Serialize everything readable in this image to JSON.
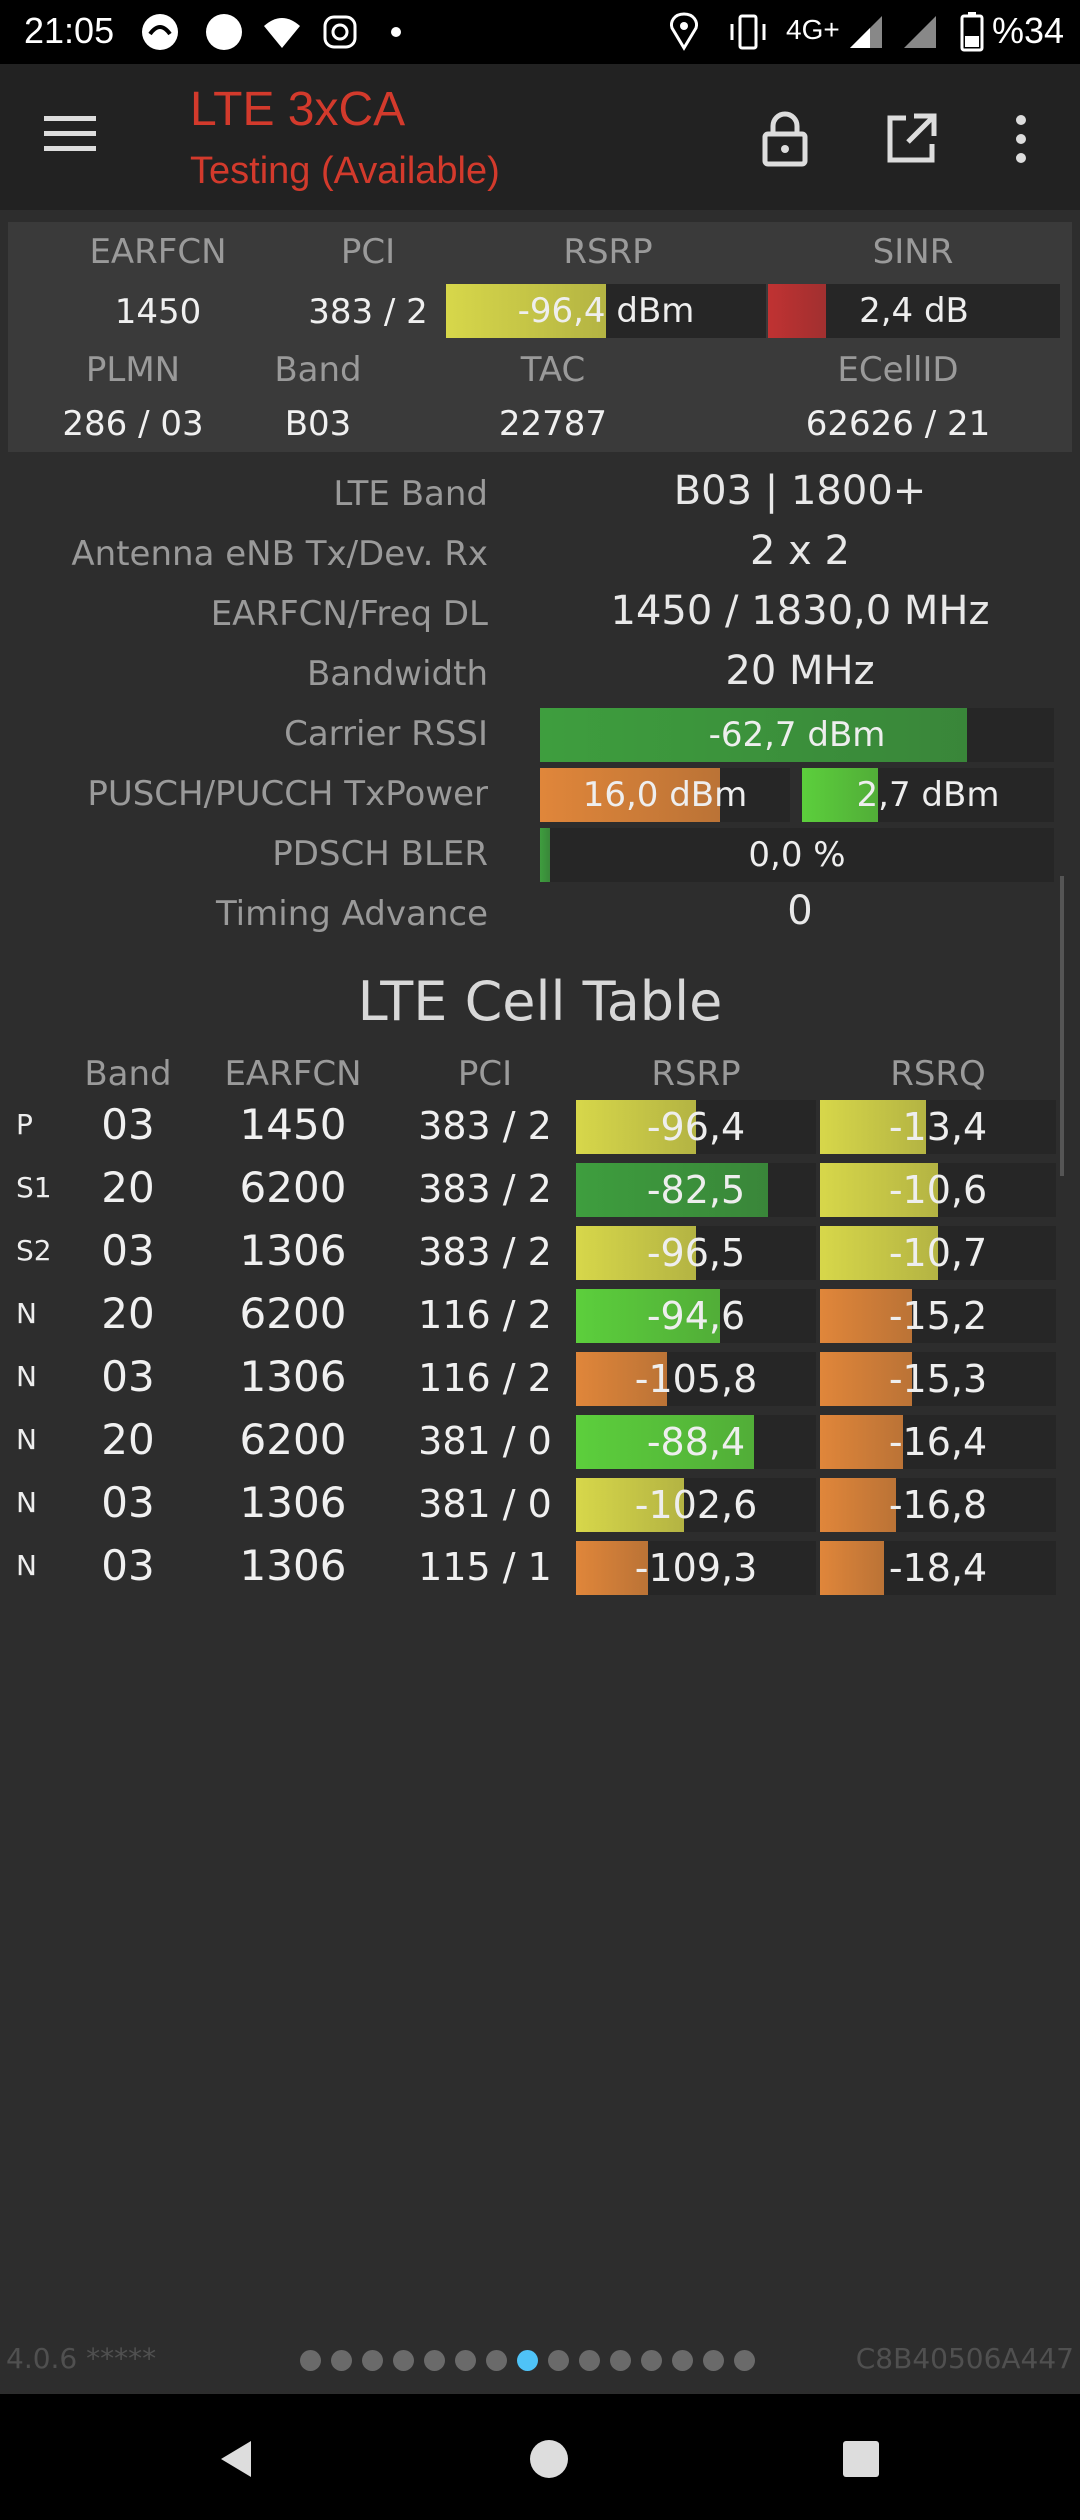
{
  "status_bar": {
    "time": "21:05",
    "network": "4G+",
    "battery": "%34"
  },
  "app_bar": {
    "title": "LTE 3xCA",
    "subtitle": "Testing (Available)"
  },
  "summary": {
    "labels": {
      "earfcn": "EARFCN",
      "pci": "PCI",
      "rsrp": "RSRP",
      "sinr": "SINR",
      "plmn": "PLMN",
      "band": "Band",
      "tac": "TAC",
      "ecellid": "ECellID"
    },
    "earfcn": "1450",
    "pci": "383 / 2",
    "rsrp": {
      "text": "-96,4 dBm",
      "fill": 0.5,
      "color": "#d7d74a"
    },
    "sinr": {
      "text": "2,4 dB",
      "fill": 0.2,
      "color": "#c03232"
    },
    "plmn": "286 / 03",
    "band": "B03",
    "tac": "22787",
    "ecellid": "62626 / 21"
  },
  "details": {
    "lte_band": {
      "label": "LTE Band",
      "value": "B03 | 1800+"
    },
    "antenna": {
      "label": "Antenna eNB Tx/Dev. Rx",
      "value": "2 x 2"
    },
    "earfcn_freq": {
      "label": "EARFCN/Freq DL",
      "value": "1450 / 1830,0 MHz"
    },
    "bandwidth": {
      "label": "Bandwidth",
      "value": "20 MHz"
    },
    "rssi": {
      "label": "Carrier RSSI",
      "text": "-62,7 dBm",
      "fill": 0.83,
      "color": "#3e9e3e"
    },
    "txpower": {
      "label": "PUSCH/PUCCH TxPower",
      "pusch": "16,0 dBm",
      "pusch_fill": 0.72,
      "pusch_color": "#e0863a",
      "pucch": "2,7 dBm",
      "pucch_fill": 0.3,
      "pucch_color": "#5ccf3c"
    },
    "bler": {
      "label": "PDSCH BLER",
      "text": "0,0 %",
      "fill": 0.02,
      "color": "#3e9e3e"
    },
    "timing": {
      "label": "Timing Advance",
      "value": "0"
    }
  },
  "cell_table": {
    "title": "LTE Cell Table",
    "headers": {
      "band": "Band",
      "earfcn": "EARFCN",
      "pci": "PCI",
      "rsrp": "RSRP",
      "rsrq": "RSRQ"
    },
    "rows": [
      {
        "tag": "P",
        "band": "03",
        "earfcn": "1450",
        "pci": "383 / 2",
        "rsrp": "-96,4",
        "rsrp_fill": 0.5,
        "rsrp_color": "#d7d74a",
        "rsrq": "-13,4",
        "rsrq_fill": 0.45,
        "rsrq_color": "#d7d74a"
      },
      {
        "tag": "S1",
        "band": "20",
        "earfcn": "6200",
        "pci": "383 / 2",
        "rsrp": "-82,5",
        "rsrp_fill": 0.8,
        "rsrp_color": "#3e9e3e",
        "rsrq": "-10,6",
        "rsrq_fill": 0.5,
        "rsrq_color": "#d7d74a"
      },
      {
        "tag": "S2",
        "band": "03",
        "earfcn": "1306",
        "pci": "383 / 2",
        "rsrp": "-96,5",
        "rsrp_fill": 0.5,
        "rsrp_color": "#d7d74a",
        "rsrq": "-10,7",
        "rsrq_fill": 0.5,
        "rsrq_color": "#d7d74a"
      },
      {
        "tag": "N",
        "band": "20",
        "earfcn": "6200",
        "pci": "116 / 2",
        "rsrp": "-94,6",
        "rsrp_fill": 0.6,
        "rsrp_color": "#5ccf3c",
        "rsrq": "-15,2",
        "rsrq_fill": 0.39,
        "rsrq_color": "#e0863a"
      },
      {
        "tag": "N",
        "band": "03",
        "earfcn": "1306",
        "pci": "116 / 2",
        "rsrp": "-105,8",
        "rsrp_fill": 0.38,
        "rsrp_color": "#e0863a",
        "rsrq": "-15,3",
        "rsrq_fill": 0.39,
        "rsrq_color": "#e0863a"
      },
      {
        "tag": "N",
        "band": "20",
        "earfcn": "6200",
        "pci": "381 / 0",
        "rsrp": "-88,4",
        "rsrp_fill": 0.74,
        "rsrp_color": "#5ccf3c",
        "rsrq": "-16,4",
        "rsrq_fill": 0.35,
        "rsrq_color": "#e0863a"
      },
      {
        "tag": "N",
        "band": "03",
        "earfcn": "1306",
        "pci": "381 / 0",
        "rsrp": "-102,6",
        "rsrp_fill": 0.45,
        "rsrp_color": "#d7d74a",
        "rsrq": "-16,8",
        "rsrq_fill": 0.32,
        "rsrq_color": "#e0863a"
      },
      {
        "tag": "N",
        "band": "03",
        "earfcn": "1306",
        "pci": "115 / 1",
        "rsrp": "-109,3",
        "rsrp_fill": 0.3,
        "rsrp_color": "#e0863a",
        "rsrq": "-18,4",
        "rsrq_fill": 0.27,
        "rsrq_color": "#e0863a"
      }
    ]
  },
  "footer": {
    "version": "4.0.6 *****",
    "code": "C8B40506A447",
    "page_count": 15,
    "active_page": 7
  }
}
